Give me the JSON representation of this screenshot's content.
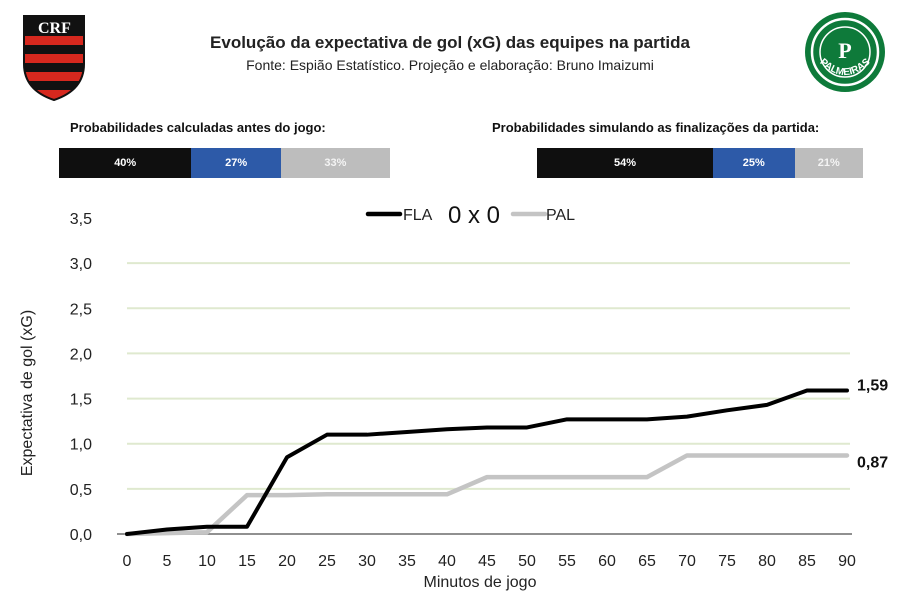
{
  "header": {
    "title": "Evolução da expectativa de gol (xG) das equipes na partida",
    "subtitle": "Fonte: Espião Estatístico. Projeção e elaboração: Bruno Imaizumi",
    "logo_left": "flamengo-crest",
    "logo_right": "palmeiras-crest",
    "logo_right_text": "PALMEIRAS"
  },
  "probabilities": {
    "pre_match": {
      "label": "Probabilidades calculadas antes do jogo:",
      "segments": [
        {
          "label": "40%",
          "value": 40,
          "color": "#0f0f0f"
        },
        {
          "label": "27%",
          "value": 27,
          "color": "#2d5aa8"
        },
        {
          "label": "33%",
          "value": 33,
          "color": "#bdbdbd"
        }
      ]
    },
    "simulated": {
      "label": "Probabilidades simulando as finalizações da partida:",
      "segments": [
        {
          "label": "54%",
          "value": 54,
          "color": "#0f0f0f"
        },
        {
          "label": "25%",
          "value": 25,
          "color": "#2d5aa8"
        },
        {
          "label": "21%",
          "value": 21,
          "color": "#bdbdbd"
        }
      ]
    }
  },
  "chart_data": {
    "type": "line",
    "title": "Evolução da expectativa de gol (xG) das equipes na partida",
    "xlabel": "Minutos de jogo",
    "ylabel": "Expectativa de gol (xG)",
    "score": "0 x 0",
    "x": [
      0,
      5,
      10,
      15,
      20,
      25,
      30,
      35,
      40,
      45,
      50,
      55,
      60,
      65,
      70,
      75,
      80,
      85,
      90
    ],
    "xticks": [
      "0",
      "5",
      "10",
      "15",
      "20",
      "25",
      "30",
      "35",
      "40",
      "45",
      "50",
      "55",
      "60",
      "65",
      "70",
      "75",
      "80",
      "85",
      "90"
    ],
    "ylim": [
      0,
      3.5
    ],
    "yticks": [
      0,
      0.5,
      1.0,
      1.5,
      2.0,
      2.5,
      3.0,
      3.5
    ],
    "ytick_labels": [
      "0,0",
      "0,5",
      "1,0",
      "1,5",
      "2,0",
      "2,5",
      "3,0",
      "3,5"
    ],
    "grid": true,
    "legend": "top-center",
    "series": [
      {
        "name": "FLA",
        "color": "#000000",
        "values": [
          0,
          0.05,
          0.08,
          0.08,
          0.85,
          1.1,
          1.1,
          1.13,
          1.16,
          1.18,
          1.18,
          1.27,
          1.27,
          1.27,
          1.3,
          1.37,
          1.43,
          1.59,
          1.59
        ],
        "end_label": "1,59"
      },
      {
        "name": "PAL",
        "color": "#c4c4c4",
        "values": [
          0,
          0.01,
          0.02,
          0.43,
          0.43,
          0.44,
          0.44,
          0.44,
          0.44,
          0.63,
          0.63,
          0.63,
          0.63,
          0.63,
          0.87,
          0.87,
          0.87,
          0.87,
          0.87
        ],
        "end_label": "0,87"
      }
    ]
  }
}
